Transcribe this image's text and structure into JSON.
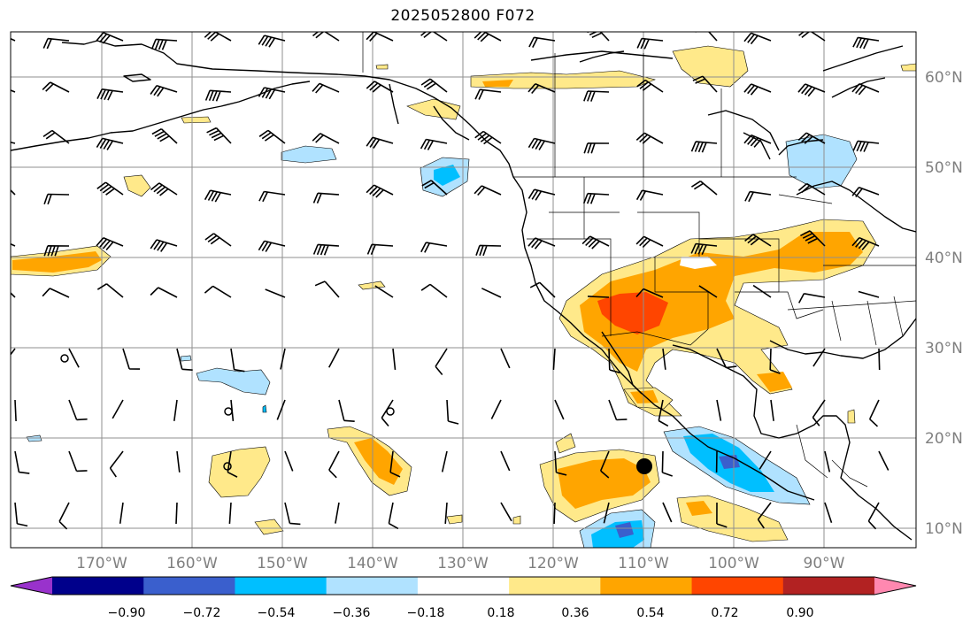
{
  "map": {
    "title": "2025052800 F072",
    "lon_labels": [
      "170°W",
      "160°W",
      "150°W",
      "140°W",
      "130°W",
      "120°W",
      "110°W",
      "100°W",
      "90°W"
    ],
    "lat_labels": [
      "60°N",
      "50°N",
      "40°N",
      "30°N",
      "20°N",
      "10°N"
    ],
    "extent": {
      "lon": [
        -180,
        -80
      ],
      "lat": [
        8,
        65
      ]
    }
  },
  "colorbar": {
    "levels": [
      "−0.90",
      "−0.72",
      "−0.54",
      "−0.36",
      "−0.18",
      "0.18",
      "0.36",
      "0.54",
      "0.72",
      "0.90"
    ],
    "colors": [
      "#9932cc",
      "#00008b",
      "#3a5fcd",
      "#00bfff",
      "#b0e2ff",
      "#ffffff",
      "#ffe98a",
      "#ffa500",
      "#ff4500",
      "#b22222",
      "#ff88b0"
    ]
  }
}
